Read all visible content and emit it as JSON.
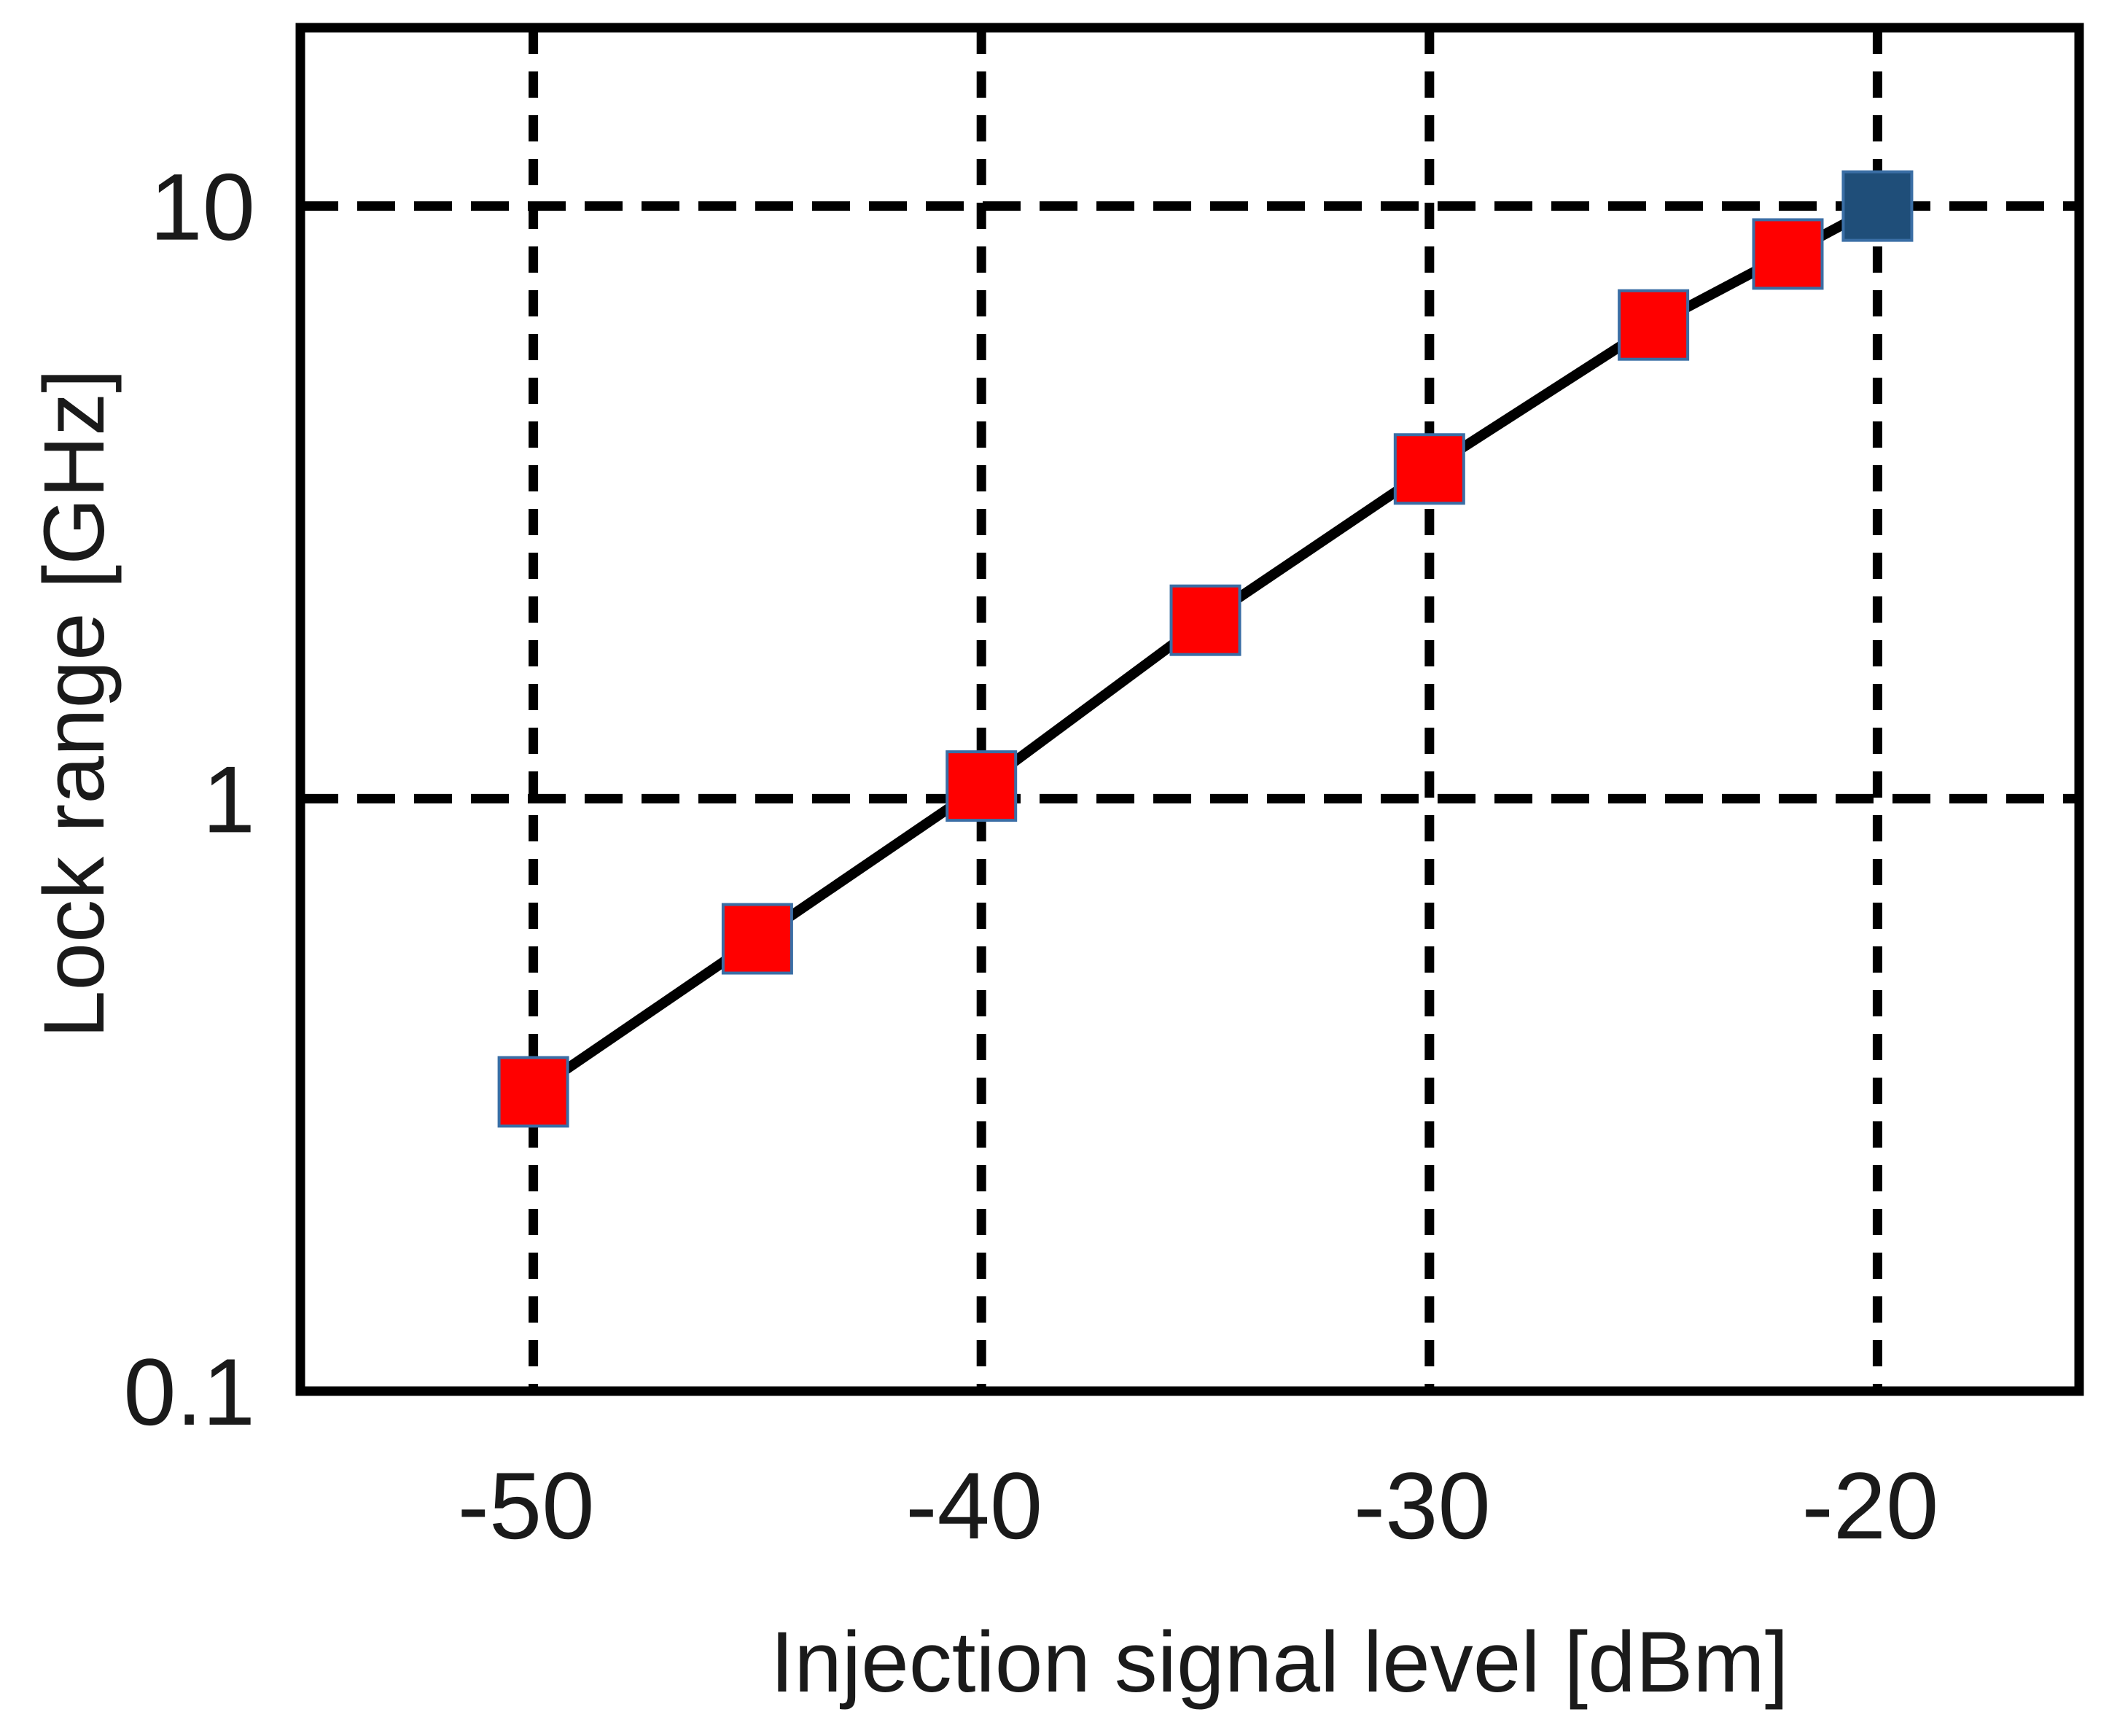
{
  "chart_data": {
    "type": "line",
    "title": "",
    "xlabel": "Injection signal level [dBm]",
    "ylabel": "Lock range [GHz]",
    "xscale": "linear",
    "yscale": "log",
    "xlim": [
      -55.2,
      -15.5
    ],
    "ylim": [
      0.1,
      20
    ],
    "xticks": [
      -50,
      -40,
      -30,
      -20
    ],
    "xtick_labels": [
      "-50",
      "-40",
      "-30",
      "-20"
    ],
    "yticks": [
      0.1,
      1,
      10
    ],
    "ytick_labels": [
      "0.1",
      "1",
      "10"
    ],
    "grid": true,
    "legend": "none",
    "series": [
      {
        "name": "Lock range",
        "line_color": "#000000",
        "marker": "square",
        "x": [
          -50,
          -45,
          -40,
          -35,
          -30,
          -25,
          -22,
          -20
        ],
        "y": [
          0.32,
          0.58,
          1.05,
          2.0,
          3.6,
          6.3,
          8.3,
          10
        ],
        "marker_colors": [
          "#ff0000",
          "#ff0000",
          "#ff0000",
          "#ff0000",
          "#ff0000",
          "#ff0000",
          "#ff0000",
          "#1f4e79"
        ]
      }
    ]
  }
}
